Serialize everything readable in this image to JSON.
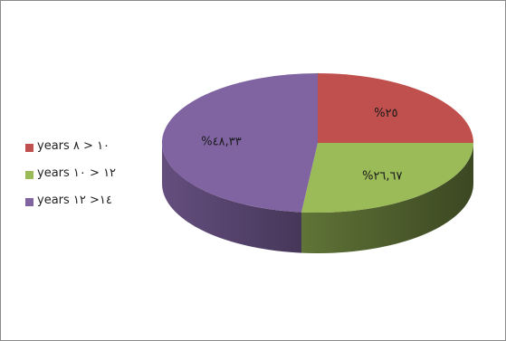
{
  "chart_data": {
    "type": "pie",
    "categories": [
      "years ١٠ < ٨",
      "years ١٢ < ١٠",
      "years ١٤< ١٢"
    ],
    "values": [
      25,
      26.67,
      48.33
    ],
    "data_labels": [
      "%٢٥",
      "%٢٦,٦٧",
      "%٤٨,٣٣"
    ],
    "colors": [
      "#c0504d",
      "#9bbb59",
      "#8064a2"
    ],
    "legend_position": "left",
    "style": "3d"
  }
}
